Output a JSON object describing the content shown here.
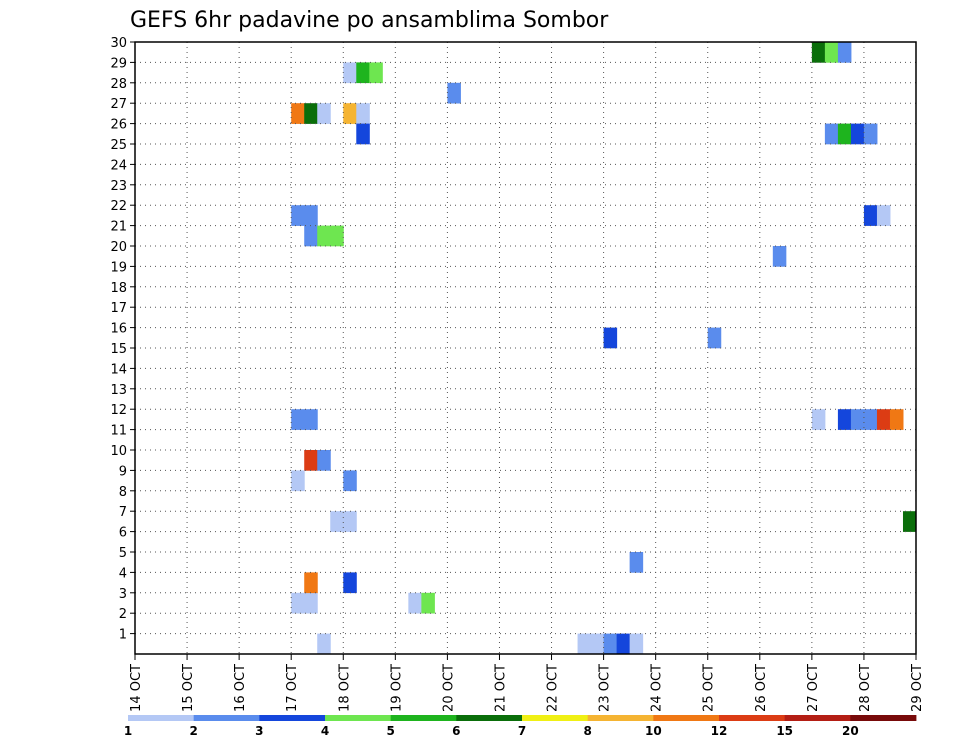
{
  "chart_data": {
    "type": "heatmap",
    "title": "GEFS 6hr padavine po ansamblima Sombor",
    "xlabel": "",
    "ylabel": "",
    "x_ticks": [
      "14 OCT",
      "15 OCT",
      "16 OCT",
      "17 OCT",
      "18 OCT",
      "19 OCT",
      "20 OCT",
      "21 OCT",
      "22 OCT",
      "23 OCT",
      "24 OCT",
      "25 OCT",
      "26 OCT",
      "27 OCT",
      "28 OCT",
      "29 OCT"
    ],
    "y_ticks": [
      "1",
      "2",
      "3",
      "4",
      "5",
      "6",
      "7",
      "8",
      "9",
      "10",
      "11",
      "12",
      "13",
      "14",
      "15",
      "16",
      "17",
      "18",
      "19",
      "20",
      "21",
      "22",
      "23",
      "24",
      "25",
      "26",
      "27",
      "28",
      "29",
      "30"
    ],
    "xlim": [
      "14 OCT 00Z",
      "29 OCT 00Z"
    ],
    "ylim": [
      0,
      30
    ],
    "x_unit": "days",
    "grid": true,
    "legend_position": "bottom",
    "legend": {
      "labels": [
        "1",
        "2",
        "3",
        "4",
        "5",
        "6",
        "7",
        "8",
        "10",
        "12",
        "15",
        "20"
      ],
      "colors": [
        "#b4c8f5",
        "#5a8ced",
        "#1446dc",
        "#6ee650",
        "#1eb41e",
        "#0a6e0a",
        "#f0f014",
        "#f5b432",
        "#f07814",
        "#dc3c14",
        "#b41e14",
        "#780a0a"
      ]
    },
    "cells": [
      {
        "day": 17.0,
        "member": 2,
        "value": 1
      },
      {
        "day": 17.25,
        "member": 2,
        "value": 1
      },
      {
        "day": 17.25,
        "member": 3,
        "value": 10
      },
      {
        "day": 17.0,
        "member": 8,
        "value": 1
      },
      {
        "day": 17.25,
        "member": 9,
        "value": 12
      },
      {
        "day": 17.5,
        "member": 9,
        "value": 2
      },
      {
        "day": 17.0,
        "member": 11,
        "value": 2
      },
      {
        "day": 17.25,
        "member": 11,
        "value": 2
      },
      {
        "day": 17.0,
        "member": 21,
        "value": 2
      },
      {
        "day": 17.25,
        "member": 21,
        "value": 2
      },
      {
        "day": 17.25,
        "member": 20,
        "value": 2
      },
      {
        "day": 17.5,
        "member": 20,
        "value": 4
      },
      {
        "day": 17.75,
        "member": 20,
        "value": 4
      },
      {
        "day": 17.0,
        "member": 26,
        "value": 10
      },
      {
        "day": 17.25,
        "member": 26,
        "value": 6
      },
      {
        "day": 17.5,
        "member": 26,
        "value": 1
      },
      {
        "day": 17.5,
        "member": 0,
        "value": 1
      },
      {
        "day": 17.75,
        "member": 6,
        "value": 1
      },
      {
        "day": 18.0,
        "member": 6,
        "value": 1
      },
      {
        "day": 18.0,
        "member": 3,
        "value": 3
      },
      {
        "day": 18.0,
        "member": 8,
        "value": 2
      },
      {
        "day": 18.0,
        "member": 26,
        "value": 8
      },
      {
        "day": 18.25,
        "member": 26,
        "value": 1
      },
      {
        "day": 18.25,
        "member": 25,
        "value": 3
      },
      {
        "day": 18.0,
        "member": 28,
        "value": 1
      },
      {
        "day": 18.25,
        "member": 28,
        "value": 5
      },
      {
        "day": 18.5,
        "member": 28,
        "value": 4
      },
      {
        "day": 19.25,
        "member": 2,
        "value": 1
      },
      {
        "day": 19.5,
        "member": 2,
        "value": 4
      },
      {
        "day": 20.0,
        "member": 27,
        "value": 2
      },
      {
        "day": 22.5,
        "member": 0,
        "value": 1
      },
      {
        "day": 22.75,
        "member": 0,
        "value": 1
      },
      {
        "day": 23.0,
        "member": 0,
        "value": 2
      },
      {
        "day": 23.25,
        "member": 0,
        "value": 3
      },
      {
        "day": 23.5,
        "member": 0,
        "value": 1
      },
      {
        "day": 23.0,
        "member": 15,
        "value": 3
      },
      {
        "day": 23.5,
        "member": 4,
        "value": 2
      },
      {
        "day": 25.0,
        "member": 15,
        "value": 2
      },
      {
        "day": 26.25,
        "member": 19,
        "value": 2
      },
      {
        "day": 27.0,
        "member": 11,
        "value": 1
      },
      {
        "day": 27.5,
        "member": 11,
        "value": 3
      },
      {
        "day": 27.75,
        "member": 11,
        "value": 2
      },
      {
        "day": 28.0,
        "member": 11,
        "value": 2
      },
      {
        "day": 28.25,
        "member": 11,
        "value": 12
      },
      {
        "day": 28.5,
        "member": 11,
        "value": 10
      },
      {
        "day": 27.25,
        "member": 25,
        "value": 2
      },
      {
        "day": 27.5,
        "member": 25,
        "value": 5
      },
      {
        "day": 27.75,
        "member": 25,
        "value": 3
      },
      {
        "day": 28.0,
        "member": 25,
        "value": 2
      },
      {
        "day": 27.0,
        "member": 29,
        "value": 6
      },
      {
        "day": 27.25,
        "member": 29,
        "value": 4
      },
      {
        "day": 27.5,
        "member": 29,
        "value": 2
      },
      {
        "day": 28.0,
        "member": 21,
        "value": 3
      },
      {
        "day": 28.25,
        "member": 21,
        "value": 1
      },
      {
        "day": 28.75,
        "member": 6,
        "value": 6
      }
    ]
  }
}
